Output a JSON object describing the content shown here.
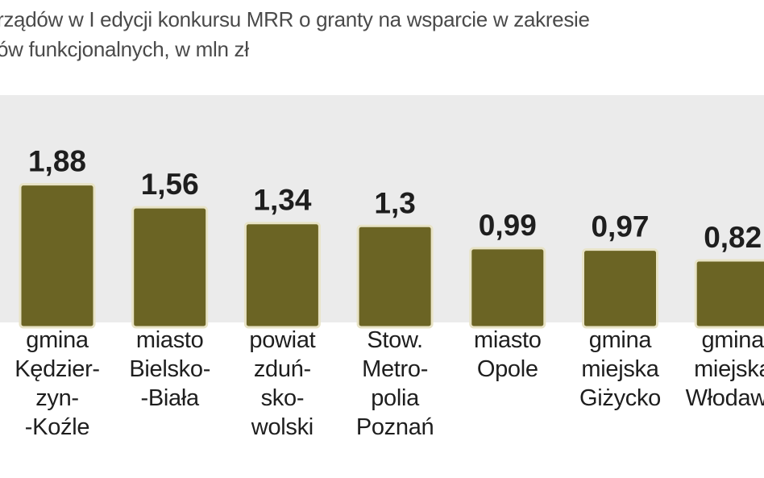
{
  "subtitle_lines": [
    "rządów w I edycji konkursu MRR o granty na wsparcie w zakresie",
    "ów funkcjonalnych, w mln zł"
  ],
  "colors": {
    "bar": "#6b6424",
    "bar_border": "#e8e3c6",
    "panel": "#ebebeb"
  },
  "chart_data": {
    "type": "bar",
    "categories": [
      "gmina Kędzierzyn-Koźle",
      "miasto Bielsko-Biała",
      "powiat zduńsko-wolski",
      "Stow. Metropolia Poznań",
      "miasto Opole",
      "gmina miejska Giżycko",
      "gmina miejska Włodawa"
    ],
    "category_label_lines": [
      [
        "gmina",
        "Kędzier-",
        "zyn-",
        "-Koźle"
      ],
      [
        "miasto",
        "Bielsko-",
        "-Biała"
      ],
      [
        "powiat",
        "zduń-",
        "sko-",
        "wolski"
      ],
      [
        "Stow.",
        "Metro-",
        "polia",
        "Poznań"
      ],
      [
        "miasto",
        "Opole"
      ],
      [
        "gmina",
        "miejska",
        "Giżycko"
      ],
      [
        "gmina",
        "miejska",
        "Włodawa"
      ]
    ],
    "values": [
      1.88,
      1.56,
      1.34,
      1.3,
      0.99,
      0.97,
      0.82
    ],
    "value_labels": [
      "1,88",
      "1,56",
      "1,34",
      "1,3",
      "0,99",
      "0,97",
      "0,82"
    ],
    "ylim": [
      0,
      2.3
    ],
    "title": "",
    "xlabel": "",
    "ylabel": ""
  }
}
